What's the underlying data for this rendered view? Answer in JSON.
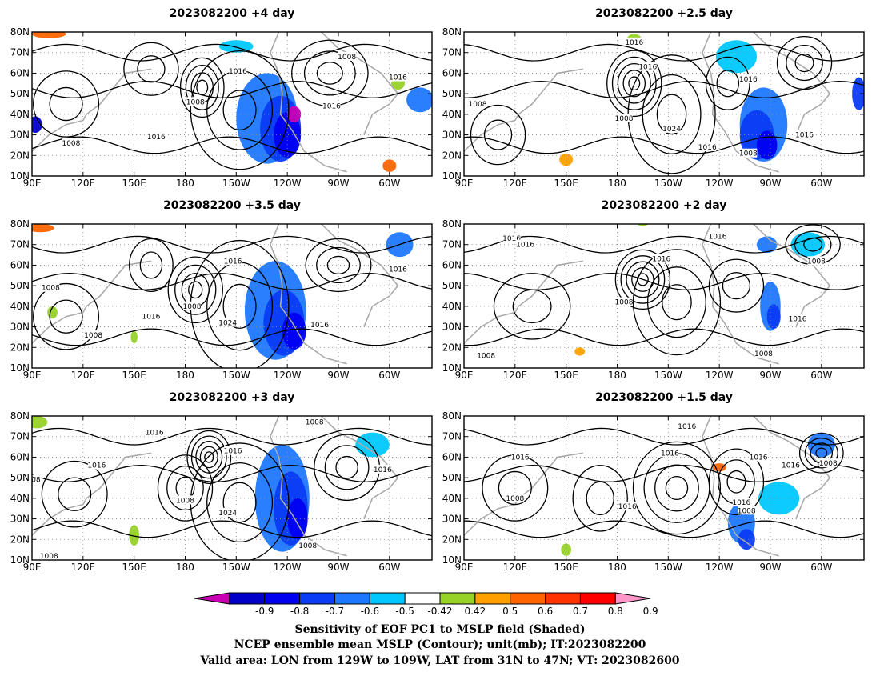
{
  "panels": [
    {
      "title": "2023082200  +4 day",
      "labels": [
        {
          "t": "1016",
          "lon": 211,
          "lat": 61
        },
        {
          "t": "1008",
          "lon": 186,
          "lat": 46
        },
        {
          "t": "1016",
          "lon": 163,
          "lat": 29
        },
        {
          "t": "1008",
          "lon": 113,
          "lat": 26
        },
        {
          "t": "1008",
          "lon": 275,
          "lat": 68
        },
        {
          "t": "1016",
          "lon": 266,
          "lat": 44
        },
        {
          "t": "1016",
          "lon": 305,
          "lat": 58
        }
      ]
    },
    {
      "title": "2023082200  +2.5 day",
      "labels": [
        {
          "t": "1016",
          "lon": 190,
          "lat": 75
        },
        {
          "t": "1016",
          "lon": 198,
          "lat": 63
        },
        {
          "t": "1016",
          "lon": 257,
          "lat": 57
        },
        {
          "t": "1008",
          "lon": 98,
          "lat": 45
        },
        {
          "t": "1008",
          "lon": 184,
          "lat": 38
        },
        {
          "t": "1024",
          "lon": 212,
          "lat": 33
        },
        {
          "t": "1016",
          "lon": 233,
          "lat": 24
        },
        {
          "t": "1008",
          "lon": 257,
          "lat": 21
        },
        {
          "t": "1016",
          "lon": 290,
          "lat": 30
        }
      ]
    },
    {
      "title": "2023082200  +3.5 day",
      "labels": [
        {
          "t": "1016",
          "lon": 208,
          "lat": 62
        },
        {
          "t": "1008",
          "lon": 101,
          "lat": 49
        },
        {
          "t": "1008",
          "lon": 184,
          "lat": 40
        },
        {
          "t": "1016",
          "lon": 160,
          "lat": 35
        },
        {
          "t": "1024",
          "lon": 205,
          "lat": 32
        },
        {
          "t": "1008",
          "lon": 126,
          "lat": 26
        },
        {
          "t": "1016",
          "lon": 259,
          "lat": 31
        },
        {
          "t": "1016",
          "lon": 305,
          "lat": 58
        }
      ]
    },
    {
      "title": "2023082200  +2 day",
      "labels": [
        {
          "t": "1016",
          "lon": 118,
          "lat": 73
        },
        {
          "t": "1016",
          "lon": 126,
          "lat": 70
        },
        {
          "t": "1016",
          "lon": 206,
          "lat": 63
        },
        {
          "t": "1016",
          "lon": 239,
          "lat": 74
        },
        {
          "t": "1008",
          "lon": 297,
          "lat": 62
        },
        {
          "t": "1008",
          "lon": 184,
          "lat": 42
        },
        {
          "t": "1016",
          "lon": 286,
          "lat": 34
        },
        {
          "t": "1008",
          "lon": 266,
          "lat": 17
        },
        {
          "t": "1008",
          "lon": 103,
          "lat": 16
        }
      ]
    },
    {
      "title": "2023082200  +3 day",
      "labels": [
        {
          "t": "1016",
          "lon": 162,
          "lat": 72
        },
        {
          "t": "1008",
          "lon": 256,
          "lat": 77
        },
        {
          "t": "1016",
          "lon": 208,
          "lat": 63
        },
        {
          "t": "1016",
          "lon": 128,
          "lat": 56
        },
        {
          "t": "008",
          "lon": 91,
          "lat": 49
        },
        {
          "t": "1016",
          "lon": 296,
          "lat": 54
        },
        {
          "t": "1008",
          "lon": 180,
          "lat": 39
        },
        {
          "t": "1024",
          "lon": 205,
          "lat": 33
        },
        {
          "t": "1008",
          "lon": 252,
          "lat": 17
        },
        {
          "t": "1008",
          "lon": 100,
          "lat": 12
        }
      ]
    },
    {
      "title": "2023082200  +1.5 day",
      "labels": [
        {
          "t": "1016",
          "lon": 221,
          "lat": 75
        },
        {
          "t": "1016",
          "lon": 123,
          "lat": 60
        },
        {
          "t": "1016",
          "lon": 211,
          "lat": 62
        },
        {
          "t": "1016",
          "lon": 263,
          "lat": 60
        },
        {
          "t": "1016",
          "lon": 282,
          "lat": 56
        },
        {
          "t": "1008",
          "lon": 304,
          "lat": 57
        },
        {
          "t": "1008",
          "lon": 120,
          "lat": 40
        },
        {
          "t": "1016",
          "lon": 186,
          "lat": 36
        },
        {
          "t": "1016",
          "lon": 253,
          "lat": 38
        },
        {
          "t": "1008",
          "lon": 256,
          "lat": 34
        }
      ]
    }
  ],
  "map": {
    "lon_ticks": [
      "90E",
      "120E",
      "150E",
      "180",
      "150W",
      "120W",
      "90W",
      "60W"
    ],
    "lon_values": [
      90,
      120,
      150,
      180,
      210,
      240,
      270,
      300
    ],
    "lat_ticks": [
      "10N",
      "20N",
      "30N",
      "40N",
      "50N",
      "60N",
      "70N",
      "80N"
    ],
    "lat_values": [
      10,
      20,
      30,
      40,
      50,
      60,
      70,
      80
    ],
    "lon_range": [
      90,
      325
    ],
    "lat_range": [
      10,
      80
    ]
  },
  "colorbar": {
    "labels": [
      "-0.9",
      "-0.8",
      "-0.7",
      "-0.6",
      "-0.5",
      "-0.42",
      "0.42",
      "0.5",
      "0.6",
      "0.7",
      "0.8",
      "0.9"
    ],
    "colors": [
      "#c800b4",
      "#0000c8",
      "#0000f0",
      "#0a3cf5",
      "#1e78ff",
      "#00c8ff",
      "#ffffff",
      "#96d228",
      "#ffa000",
      "#ff6400",
      "#ff3200",
      "#ff0000",
      "#ff96c8"
    ]
  },
  "caption": {
    "line1": "Sensitivity of EOF PC1 to MSLP field (Shaded)",
    "line2": "NCEP ensemble mean MSLP (Contour); unit(mb); IT:2023082200",
    "line3": "Valid area: LON from 129W to 109W, LAT from 31N to 47N; VT: 2023082600"
  }
}
